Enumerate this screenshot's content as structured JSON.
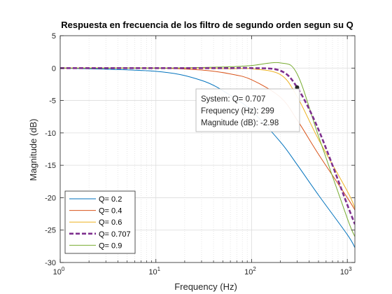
{
  "colors": {
    "background": "#ffffff",
    "axes_face": "#ffffff",
    "axis_lines": "#262626",
    "grid": "#dcdcdc",
    "series": [
      "#0072bd",
      "#d95319",
      "#edb120",
      "#7e2f8e",
      "#77ac30"
    ]
  },
  "chart_data": {
    "type": "line",
    "title": "Respuesta en frecuencia de los filtro de segundo orden segun su Q",
    "xlabel": "Frequency  (Hz)",
    "ylabel": "Magnitude (dB)",
    "xscale": "log",
    "xlim": [
      1,
      1200
    ],
    "ylim": [
      -30,
      5
    ],
    "xticks": [
      1,
      10,
      100,
      1000
    ],
    "xtick_labels": [
      {
        "base": "10",
        "exp": "0"
      },
      {
        "base": "10",
        "exp": "1"
      },
      {
        "base": "10",
        "exp": "2"
      },
      {
        "base": "10",
        "exp": "3"
      }
    ],
    "yticks": [
      5,
      0,
      -5,
      -10,
      -15,
      -20,
      -25,
      -30
    ],
    "grid": true,
    "minor_grid": true,
    "legend_position": "bottom-left",
    "cutoff_frequency_hz": 299,
    "series": [
      {
        "name": "Q= 0.2",
        "Q": 0.2,
        "style": "solid",
        "x": [
          1,
          10,
          30,
          60,
          100,
          200,
          299,
          500,
          1000,
          1200
        ],
        "y": [
          0,
          -0.5,
          -1.9,
          -4.2,
          -6.6,
          -11.4,
          -14.9,
          -19.6,
          -25.7,
          -27.7
        ]
      },
      {
        "name": "Q= 0.4",
        "Q": 0.4,
        "style": "solid",
        "x": [
          1,
          10,
          30,
          60,
          100,
          200,
          299,
          500,
          1000,
          1200
        ],
        "y": [
          0,
          0,
          -0.3,
          -0.9,
          -1.8,
          -4.5,
          -8.0,
          -13.3,
          -20.0,
          -21.9
        ]
      },
      {
        "name": "Q= 0.6",
        "Q": 0.6,
        "style": "solid",
        "x": [
          1,
          10,
          30,
          60,
          100,
          200,
          299,
          500,
          1000,
          1200
        ],
        "y": [
          0,
          0,
          0,
          -0.1,
          -0.1,
          -1.0,
          -4.4,
          -11.0,
          -19.0,
          -21.6
        ]
      },
      {
        "name": "Q= 0.707",
        "Q": 0.707,
        "style": "dashed",
        "x": [
          1,
          10,
          30,
          60,
          100,
          200,
          299,
          500,
          1000,
          1200
        ],
        "y": [
          0,
          0,
          0,
          0,
          0,
          -0.4,
          -2.98,
          -9.5,
          -21.1,
          -24.1
        ]
      },
      {
        "name": "Q= 0.9",
        "Q": 0.9,
        "style": "solid",
        "x": [
          1,
          10,
          30,
          60,
          100,
          200,
          299,
          500,
          1000,
          1200
        ],
        "y": [
          0,
          0,
          0.1,
          0.2,
          0.4,
          0.8,
          -0.9,
          -10.5,
          -23.2,
          -26.0
        ]
      }
    ],
    "datatip": {
      "x": 299,
      "y": -2.98,
      "series": "Q= 0.707",
      "lines": [
        {
          "label": "System:",
          "value": "Q= 0.707"
        },
        {
          "label": "Frequency (Hz):",
          "value": "299"
        },
        {
          "label": "Magnitude (dB):",
          "value": "-2.98"
        }
      ]
    }
  }
}
